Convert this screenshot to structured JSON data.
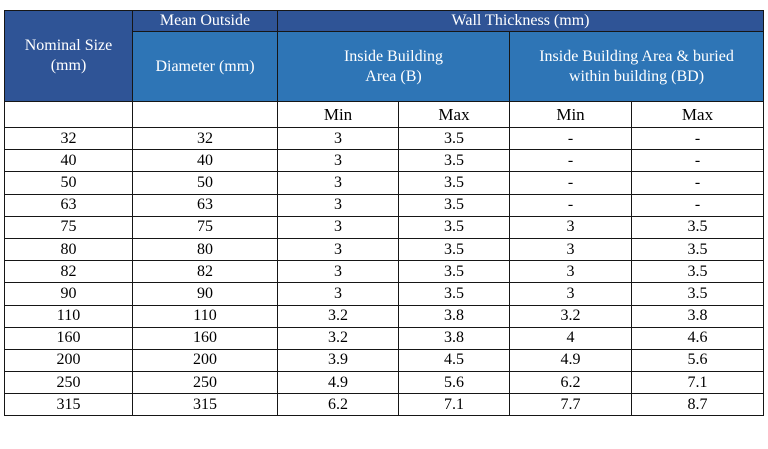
{
  "colors": {
    "header_dark_blue": "#2F5496",
    "header_light_blue": "#2E75B6",
    "header_text": "#FFFFFF",
    "body_text": "#000000",
    "grid_border": "#161616",
    "background": "#FFFFFF"
  },
  "table": {
    "header": {
      "nominal_size": "Nominal Size\n(mm)",
      "mean_outside": "Mean Outside",
      "diameter": "Diameter (mm)",
      "wall_thickness": "Wall Thickness (mm)",
      "inside_building_b": "Inside Building\nArea (B)",
      "inside_building_bd": "Inside Building  Area & buried\nwithin building (BD)",
      "min": "Min",
      "max": "Max"
    },
    "columns_keys": [
      "nominal",
      "diameter",
      "b_min",
      "b_max",
      "bd_min",
      "bd_max"
    ],
    "rows": [
      {
        "nominal": "32",
        "diameter": "32",
        "b_min": "3",
        "b_max": "3.5",
        "bd_min": "-",
        "bd_max": "-"
      },
      {
        "nominal": "40",
        "diameter": "40",
        "b_min": "3",
        "b_max": "3.5",
        "bd_min": "-",
        "bd_max": "-"
      },
      {
        "nominal": "50",
        "diameter": "50",
        "b_min": "3",
        "b_max": "3.5",
        "bd_min": "-",
        "bd_max": "-"
      },
      {
        "nominal": "63",
        "diameter": "63",
        "b_min": "3",
        "b_max": "3.5",
        "bd_min": "-",
        "bd_max": "-"
      },
      {
        "nominal": "75",
        "diameter": "75",
        "b_min": "3",
        "b_max": "3.5",
        "bd_min": "3",
        "bd_max": "3.5"
      },
      {
        "nominal": "80",
        "diameter": "80",
        "b_min": "3",
        "b_max": "3.5",
        "bd_min": "3",
        "bd_max": "3.5"
      },
      {
        "nominal": "82",
        "diameter": "82",
        "b_min": "3",
        "b_max": "3.5",
        "bd_min": "3",
        "bd_max": "3.5"
      },
      {
        "nominal": "90",
        "diameter": "90",
        "b_min": "3",
        "b_max": "3.5",
        "bd_min": "3",
        "bd_max": "3.5"
      },
      {
        "nominal": "110",
        "diameter": "110",
        "b_min": "3.2",
        "b_max": "3.8",
        "bd_min": "3.2",
        "bd_max": "3.8"
      },
      {
        "nominal": "160",
        "diameter": "160",
        "b_min": "3.2",
        "b_max": "3.8",
        "bd_min": "4",
        "bd_max": "4.6"
      },
      {
        "nominal": "200",
        "diameter": "200",
        "b_min": "3.9",
        "b_max": "4.5",
        "bd_min": "4.9",
        "bd_max": "5.6"
      },
      {
        "nominal": "250",
        "diameter": "250",
        "b_min": "4.9",
        "b_max": "5.6",
        "bd_min": "6.2",
        "bd_max": "7.1"
      },
      {
        "nominal": "315",
        "diameter": "315",
        "b_min": "6.2",
        "b_max": "7.1",
        "bd_min": "7.7",
        "bd_max": "8.7"
      }
    ]
  }
}
